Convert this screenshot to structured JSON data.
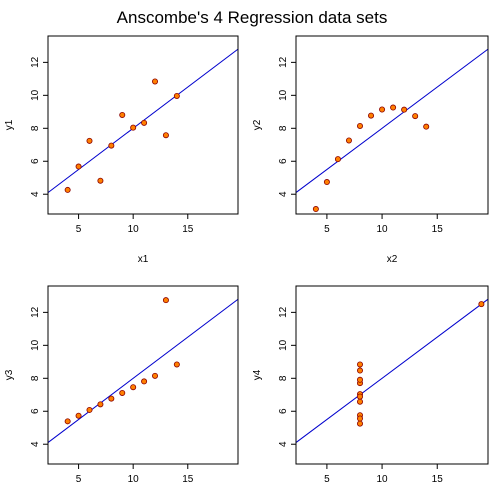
{
  "title": "Anscombe's 4 Regression data sets",
  "colors": {
    "point_fill": "#ff7f00",
    "point_stroke": "#8b0000",
    "line": "#0000cd",
    "frame": "#000000"
  },
  "chart_data": [
    {
      "type": "scatter",
      "xlabel": "x1",
      "ylabel": "y1",
      "xlim": [
        2.2,
        19.6
      ],
      "ylim": [
        2.8,
        13.6
      ],
      "xticks": [
        5,
        10,
        15
      ],
      "yticks": [
        4,
        6,
        8,
        10,
        12
      ],
      "regression": {
        "intercept": 3.0001,
        "slope": 0.5001
      },
      "x": [
        10,
        8,
        13,
        9,
        11,
        14,
        6,
        4,
        12,
        7,
        5
      ],
      "y": [
        8.04,
        6.95,
        7.58,
        8.81,
        8.33,
        9.96,
        7.24,
        4.26,
        10.84,
        4.82,
        5.68
      ]
    },
    {
      "type": "scatter",
      "xlabel": "x2",
      "ylabel": "y2",
      "xlim": [
        2.2,
        19.6
      ],
      "ylim": [
        2.8,
        13.6
      ],
      "xticks": [
        5,
        10,
        15
      ],
      "yticks": [
        4,
        6,
        8,
        10,
        12
      ],
      "regression": {
        "intercept": 3.0009,
        "slope": 0.5
      },
      "x": [
        10,
        8,
        13,
        9,
        11,
        14,
        6,
        4,
        12,
        7,
        5
      ],
      "y": [
        9.14,
        8.14,
        8.74,
        8.77,
        9.26,
        8.1,
        6.13,
        3.1,
        9.13,
        7.26,
        4.74
      ]
    },
    {
      "type": "scatter",
      "xlabel": "x3",
      "ylabel": "y3",
      "xlim": [
        2.2,
        19.6
      ],
      "ylim": [
        2.8,
        13.6
      ],
      "xticks": [
        5,
        10,
        15
      ],
      "yticks": [
        4,
        6,
        8,
        10,
        12
      ],
      "regression": {
        "intercept": 3.0025,
        "slope": 0.4997
      },
      "x": [
        10,
        8,
        13,
        9,
        11,
        14,
        6,
        4,
        12,
        7,
        5
      ],
      "y": [
        7.46,
        6.77,
        12.74,
        7.11,
        7.81,
        8.84,
        6.08,
        5.39,
        8.15,
        6.42,
        5.73
      ]
    },
    {
      "type": "scatter",
      "xlabel": "x4",
      "ylabel": "y4",
      "xlim": [
        2.2,
        19.6
      ],
      "ylim": [
        2.8,
        13.6
      ],
      "xticks": [
        5,
        10,
        15
      ],
      "yticks": [
        4,
        6,
        8,
        10,
        12
      ],
      "regression": {
        "intercept": 3.0017,
        "slope": 0.4999
      },
      "x": [
        8,
        8,
        8,
        8,
        8,
        8,
        8,
        19,
        8,
        8,
        8
      ],
      "y": [
        6.58,
        5.76,
        7.71,
        8.84,
        8.47,
        7.04,
        5.25,
        12.5,
        5.56,
        7.91,
        6.89
      ]
    }
  ]
}
